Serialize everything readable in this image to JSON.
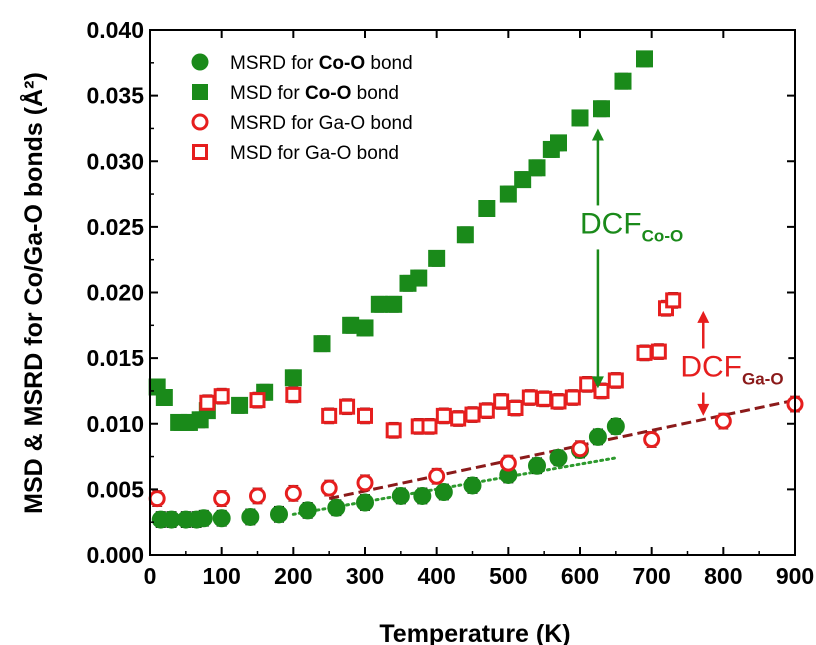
{
  "chart_data": {
    "type": "scatter",
    "xlabel": "Temperature (K)",
    "ylabel": "MSD & MSRD for Co/Ga-O bonds (Å²)",
    "xlim": [
      0,
      900
    ],
    "ylim": [
      0.0,
      0.04
    ],
    "xticks": [
      "0",
      "100",
      "200",
      "300",
      "400",
      "500",
      "600",
      "700",
      "800",
      "900"
    ],
    "yticks": [
      "0.000",
      "0.005",
      "0.010",
      "0.015",
      "0.020",
      "0.025",
      "0.030",
      "0.035",
      "0.040"
    ],
    "legend_position": "top-left",
    "series": [
      {
        "key": "msrd_co",
        "legend": {
          "pre": "MSRD for ",
          "bold": "Co-O",
          "post": " bond"
        },
        "marker": "circle",
        "filled": true,
        "color": "#1a8a1a",
        "x": [
          15,
          30,
          50,
          65,
          75,
          100,
          140,
          180,
          220,
          260,
          300,
          350,
          380,
          410,
          450,
          500,
          540,
          570,
          600,
          625,
          650
        ],
        "y": [
          0.0027,
          0.0027,
          0.0027,
          0.0027,
          0.0028,
          0.0028,
          0.0029,
          0.0031,
          0.0034,
          0.0036,
          0.004,
          0.0045,
          0.0045,
          0.0048,
          0.0053,
          0.0061,
          0.0068,
          0.0074,
          0.008,
          0.009,
          0.0098
        ]
      },
      {
        "key": "msd_co",
        "legend": {
          "pre": "MSD for ",
          "bold": "Co-O",
          "post": " bond"
        },
        "marker": "square",
        "filled": true,
        "color": "#1a8a1a",
        "x": [
          10,
          20,
          40,
          55,
          70,
          80,
          125,
          160,
          200,
          240,
          280,
          300,
          320,
          340,
          360,
          375,
          400,
          440,
          470,
          500,
          520,
          540,
          560,
          570,
          600,
          630,
          660,
          690
        ],
        "y": [
          0.0128,
          0.012,
          0.0101,
          0.0101,
          0.0103,
          0.011,
          0.0114,
          0.0124,
          0.0135,
          0.0161,
          0.0175,
          0.0173,
          0.0191,
          0.0191,
          0.0207,
          0.0211,
          0.0226,
          0.0244,
          0.0264,
          0.0275,
          0.0286,
          0.0295,
          0.0309,
          0.0314,
          0.0333,
          0.034,
          0.0361,
          0.0378
        ]
      },
      {
        "key": "msrd_ga",
        "legend": {
          "pre": "MSRD for Ga-O bond",
          "bold": "",
          "post": ""
        },
        "marker": "circle",
        "filled": false,
        "color": "#e61e1e",
        "x": [
          10,
          100,
          150,
          200,
          250,
          300,
          400,
          500,
          600,
          700,
          800,
          900
        ],
        "y": [
          0.0043,
          0.0043,
          0.0045,
          0.0047,
          0.0051,
          0.0055,
          0.006,
          0.007,
          0.0081,
          0.0088,
          0.0102,
          0.0115
        ]
      },
      {
        "key": "msd_ga",
        "legend": {
          "pre": "MSD for Ga-O bond",
          "bold": "",
          "post": ""
        },
        "marker": "square",
        "filled": false,
        "color": "#e61e1e",
        "x": [
          80,
          100,
          150,
          200,
          250,
          275,
          300,
          340,
          375,
          390,
          410,
          430,
          450,
          470,
          490,
          510,
          530,
          550,
          570,
          590,
          610,
          630,
          650,
          690,
          710,
          720,
          730
        ],
        "y": [
          0.0116,
          0.0121,
          0.0118,
          0.0122,
          0.0106,
          0.0113,
          0.0106,
          0.0095,
          0.0098,
          0.0098,
          0.0106,
          0.0104,
          0.0107,
          0.011,
          0.0117,
          0.0112,
          0.012,
          0.0119,
          0.0117,
          0.012,
          0.013,
          0.0125,
          0.0133,
          0.0154,
          0.0155,
          0.0188,
          0.0194
        ]
      }
    ],
    "error_bar": 0.0006,
    "fit_lines": [
      {
        "key": "fit_co",
        "style": "dotted",
        "color": "#2e9a2e",
        "x": [
          200,
          650
        ],
        "y": [
          0.0031,
          0.0074
        ]
      },
      {
        "key": "fit_ga",
        "style": "dashed",
        "color": "#8b1a1a",
        "x": [
          250,
          900
        ],
        "y": [
          0.0043,
          0.0118
        ]
      }
    ],
    "annotations": [
      {
        "key": "dcf_co",
        "main": "DCF",
        "sub": "Co-O",
        "color": "#1a8a1a",
        "x": 600,
        "y": 0.0245,
        "arrow_x": 625,
        "arrow_y1": 0.0325,
        "arrow_y2": 0.0127
      },
      {
        "key": "dcf_ga",
        "main": "DCF",
        "sub": "Ga-O",
        "color": "#e61e1e",
        "subcolor": "#8b1a1a",
        "x": 740,
        "y": 0.0136,
        "arrow_x": 772,
        "arrow_y1": 0.0186,
        "arrow_y2": 0.0106
      }
    ]
  }
}
